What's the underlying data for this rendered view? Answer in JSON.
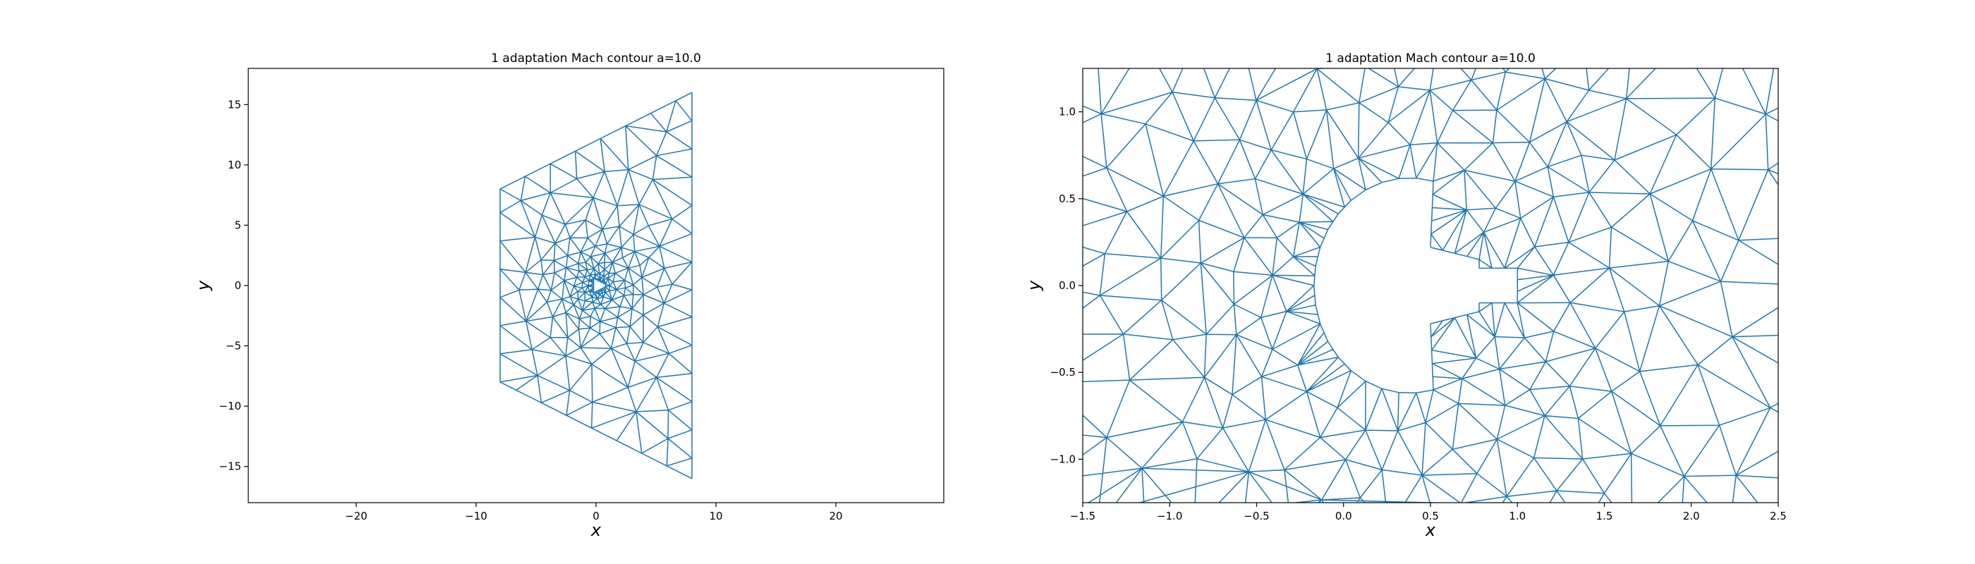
{
  "chart_data": [
    {
      "type": "mesh",
      "title": "1 adaptation Mach contour a=10.0",
      "xlabel": "x",
      "ylabel": "y",
      "xlim": [
        -29,
        29
      ],
      "ylim": [
        -18,
        18
      ],
      "xticks": [
        -20,
        -10,
        0,
        10,
        20
      ],
      "xtick_labels": [
        "−20",
        "−10",
        "0",
        "10",
        "20"
      ],
      "yticks": [
        -15,
        -10,
        -5,
        0,
        5,
        10,
        15
      ],
      "ytick_labels": [
        "−15",
        "−10",
        "−5",
        "0",
        "5",
        "10",
        "15"
      ],
      "grid": false,
      "domain_outline": [
        [
          -8,
          8
        ],
        [
          8,
          16
        ],
        [
          8,
          -16
        ],
        [
          -8,
          -8
        ]
      ],
      "body_outline": [
        [
          -0.2,
          0.6
        ],
        [
          0.8,
          0.1
        ],
        [
          0.8,
          -0.1
        ],
        [
          -0.2,
          -0.6
        ]
      ],
      "refinement_center": [
        0.2,
        0
      ],
      "mesh_color": "#1f77b4"
    },
    {
      "type": "mesh",
      "title": "1 adaptation Mach contour a=10.0",
      "xlabel": "x",
      "ylabel": "y",
      "xlim": [
        -1.5,
        2.5
      ],
      "ylim": [
        -1.25,
        1.25
      ],
      "xticks": [
        -1.5,
        -1.0,
        -0.5,
        0.0,
        0.5,
        1.0,
        1.5,
        2.0,
        2.5
      ],
      "xtick_labels": [
        "−1.5",
        "−1.0",
        "−0.5",
        "0.0",
        "0.5",
        "1.0",
        "1.5",
        "2.0",
        "2.5"
      ],
      "yticks": [
        -1.0,
        -0.5,
        0.0,
        0.5,
        1.0
      ],
      "ytick_labels": [
        "−1.0",
        "−0.5",
        "0.0",
        "0.5",
        "1.0"
      ],
      "grid": false,
      "body_outline": [
        [
          -0.15,
          0.6
        ],
        [
          0.08,
          0.5
        ],
        [
          0.3,
          0.32
        ],
        [
          0.5,
          0.22
        ],
        [
          0.78,
          0.15
        ],
        [
          0.78,
          0.1
        ],
        [
          1.0,
          0.1
        ],
        [
          1.0,
          -0.1
        ],
        [
          0.78,
          -0.1
        ],
        [
          0.78,
          -0.15
        ],
        [
          0.5,
          -0.22
        ],
        [
          0.3,
          -0.32
        ],
        [
          0.08,
          -0.5
        ],
        [
          -0.15,
          -0.6
        ]
      ],
      "mesh_color": "#1f77b4"
    }
  ]
}
